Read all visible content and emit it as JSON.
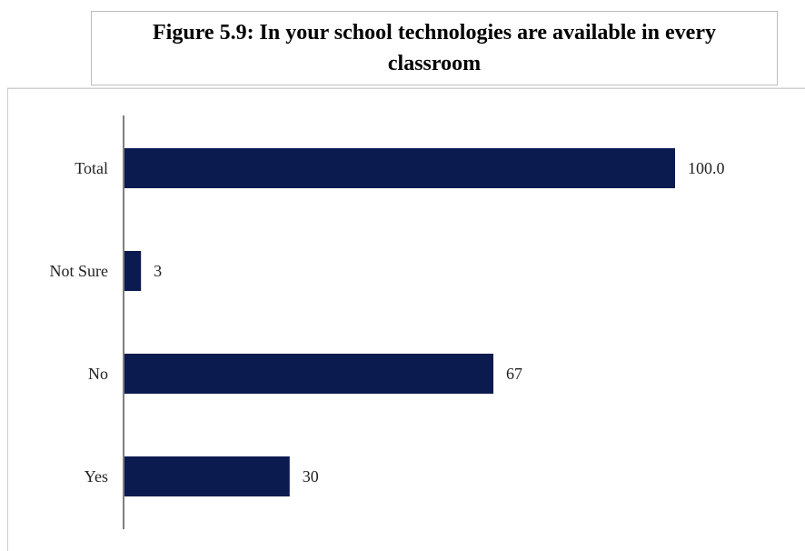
{
  "title": "Figure 5.9: In your school technologies are available in every classroom",
  "chart_data": {
    "type": "bar",
    "orientation": "horizontal",
    "categories": [
      "Total",
      "Not Sure",
      "No",
      "Yes"
    ],
    "values": [
      100.0,
      3,
      67,
      30
    ],
    "value_labels": [
      "100.0",
      "3",
      "67",
      "30"
    ],
    "xlim": [
      0,
      100
    ],
    "bar_color": "#0b1a4f",
    "grid": false,
    "legend": "none"
  }
}
